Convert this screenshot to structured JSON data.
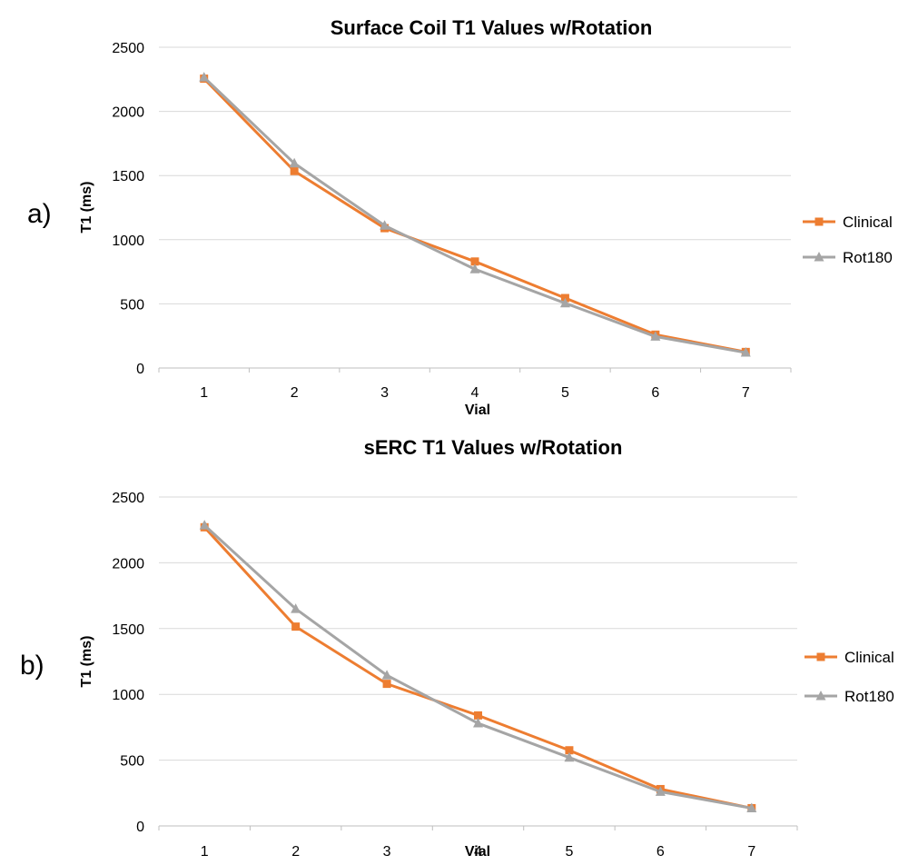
{
  "chart_data": [
    {
      "type": "line",
      "panel_label": "a)",
      "title": "Surface Coil T1 Values w/Rotation",
      "xlabel": "Vial",
      "ylabel": "T1 (ms)",
      "categories": [
        "1",
        "2",
        "3",
        "4",
        "5",
        "6",
        "7"
      ],
      "ylim": [
        0,
        2500
      ],
      "yticks": [
        0,
        500,
        1000,
        1500,
        2000,
        2500
      ],
      "grid": true,
      "legend": "right",
      "series": [
        {
          "name": "Clinical",
          "color": "#ED7D31",
          "marker": "square",
          "values": [
            2255,
            1535,
            1090,
            830,
            545,
            260,
            125
          ]
        },
        {
          "name": "Rot180",
          "color": "#A5A5A5",
          "marker": "triangle",
          "values": [
            2265,
            1595,
            1110,
            770,
            505,
            245,
            120
          ]
        }
      ]
    },
    {
      "type": "line",
      "panel_label": "b)",
      "title": "sERC T1 Values w/Rotation",
      "xlabel": "Vial",
      "ylabel": "T1 (ms)",
      "categories": [
        "1",
        "2",
        "3",
        "4",
        "5",
        "6",
        "7"
      ],
      "ylim": [
        0,
        2500
      ],
      "yticks": [
        0,
        500,
        1000,
        1500,
        2000,
        2500
      ],
      "grid": true,
      "legend": "right",
      "series": [
        {
          "name": "Clinical",
          "color": "#ED7D31",
          "marker": "square",
          "values": [
            2270,
            1515,
            1080,
            840,
            575,
            280,
            135
          ]
        },
        {
          "name": "Rot180",
          "color": "#A5A5A5",
          "marker": "triangle",
          "values": [
            2285,
            1650,
            1145,
            780,
            520,
            260,
            135
          ]
        }
      ]
    }
  ]
}
